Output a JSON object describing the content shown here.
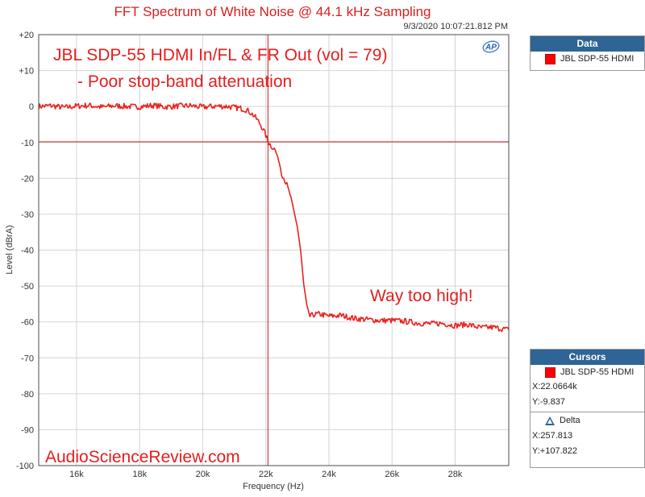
{
  "chart_data": {
    "type": "line",
    "title": "FFT Spectrum of White Noise @ 44.1 kHz Sampling",
    "timestamp": "9/3/2020 10:07:21.812 PM",
    "xlabel": "Frequency (Hz)",
    "ylabel": "Level (dBrA)",
    "xlim": [
      14800,
      29700
    ],
    "ylim": [
      -100,
      20
    ],
    "x_ticks": [
      16000,
      18000,
      20000,
      22000,
      24000,
      26000,
      28000
    ],
    "x_tick_labels": [
      "16k",
      "18k",
      "20k",
      "22k",
      "24k",
      "26k",
      "28k"
    ],
    "y_ticks": [
      20,
      10,
      0,
      -10,
      -20,
      -30,
      -40,
      -50,
      -60,
      -70,
      -80,
      -90,
      -100
    ],
    "y_tick_labels": [
      "+20",
      "+10",
      "0",
      "-10",
      "-20",
      "-30",
      "-40",
      "-50",
      "-60",
      "-70",
      "-80",
      "-90",
      "-100"
    ],
    "grid": true,
    "annotations": {
      "headline": "JBL SDP-55 HDMI In/FL & FR Out (vol = 79)",
      "subline": "- Poor stop-band attenuation",
      "callout": "Way too high!",
      "watermark": "AudioScienceReview.com"
    },
    "cursor": {
      "x": 22066.4,
      "y": -9.837
    },
    "series": [
      {
        "name": "JBL SDP-55 HDMI",
        "color": "#e8221e",
        "x": [
          14800,
          15200,
          15600,
          16000,
          16400,
          16800,
          17200,
          17600,
          18000,
          18400,
          18800,
          19200,
          19600,
          20000,
          20400,
          20800,
          21000,
          21200,
          21400,
          21500,
          21600,
          21700,
          21800,
          21900,
          22000,
          22066,
          22100,
          22200,
          22300,
          22400,
          22500,
          22600,
          22700,
          22800,
          22900,
          23000,
          23100,
          23200,
          23300,
          23400,
          23500,
          23700,
          24000,
          24400,
          24800,
          25200,
          25600,
          26000,
          26400,
          26800,
          27200,
          27600,
          28000,
          28400,
          28800,
          29200,
          29700
        ],
        "values": [
          0.0,
          0.2,
          -0.3,
          0.1,
          0.3,
          -0.2,
          0.2,
          0.0,
          -0.1,
          0.3,
          -0.1,
          0.1,
          0.2,
          -0.2,
          0.1,
          0.0,
          -0.3,
          -0.5,
          -1.0,
          -1.6,
          -2.4,
          -3.4,
          -4.6,
          -6.1,
          -8.0,
          -9.8,
          -10.2,
          -11.2,
          -12.2,
          -14.8,
          -18.5,
          -20.5,
          -22.5,
          -25.5,
          -29.5,
          -33.5,
          -40.0,
          -49.5,
          -55.5,
          -58.5,
          -58.0,
          -57.8,
          -58.4,
          -58.2,
          -59.0,
          -59.3,
          -59.6,
          -59.6,
          -59.8,
          -60.3,
          -60.5,
          -60.4,
          -61.0,
          -60.7,
          -61.6,
          -61.5,
          -62.2
        ]
      }
    ]
  },
  "legend_panel": {
    "header": "Data",
    "series_label": "JBL SDP-55 HDMI"
  },
  "cursors_panel": {
    "header": "Cursors",
    "series_label": "JBL SDP-55 HDMI",
    "x_readout": "X:22.0664k",
    "y_readout": "Y:-9.837",
    "delta_label": "Delta",
    "delta_x": "X:257.813",
    "delta_y": "Y:+107.822"
  },
  "logo_text": "AP"
}
